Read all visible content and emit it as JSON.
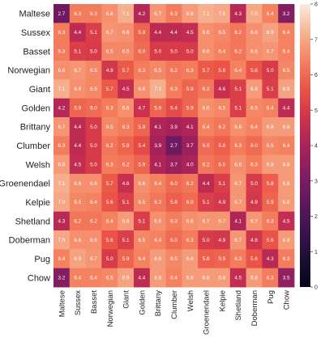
{
  "chart_data": {
    "type": "heatmap",
    "title": "",
    "xlabel": "",
    "ylabel": "",
    "rows": [
      "Maltese",
      "Sussex",
      "Basset",
      "Norwegian",
      "Giant",
      "Golden",
      "Brittany",
      "Clumber",
      "Welsh",
      "Groenendael",
      "Kelpie",
      "Shetland",
      "Doberman",
      "Pug",
      "Chow"
    ],
    "columns": [
      "Maltese",
      "Sussex",
      "Basset",
      "Norwegian",
      "Giant",
      "Golden",
      "Brittany",
      "Clumber",
      "Welsh",
      "Groenendael",
      "Kelpie",
      "Shetland",
      "Doberman",
      "Pug",
      "Chow"
    ],
    "values": [
      [
        2.7,
        6.3,
        6.3,
        6.6,
        7.1,
        4.2,
        6.7,
        6.3,
        6.8,
        7.1,
        7.0,
        4.3,
        7.0,
        6.4,
        3.2
      ],
      [
        6.3,
        4.4,
        5.1,
        6.7,
        6.6,
        5.9,
        4.4,
        4.4,
        4.5,
        6.6,
        6.5,
        6.2,
        6.6,
        6.9,
        6.4
      ],
      [
        6.3,
        5.1,
        5.0,
        6.5,
        6.5,
        6.0,
        5.0,
        5.0,
        5.0,
        6.6,
        6.4,
        6.2,
        6.6,
        6.7,
        6.4
      ],
      [
        6.6,
        6.7,
        6.5,
        4.9,
        5.7,
        6.3,
        6.5,
        6.2,
        6.3,
        5.7,
        5.6,
        6.4,
        5.6,
        5.0,
        6.5
      ],
      [
        7.1,
        6.6,
        6.5,
        5.7,
        4.5,
        6.6,
        7.1,
        6.3,
        5.9,
        6.2,
        4.6,
        5.1,
        6.8,
        5.1,
        6.9
      ],
      [
        4.2,
        5.9,
        6.0,
        6.3,
        6.6,
        4.7,
        5.9,
        5.4,
        5.9,
        6.6,
        6.5,
        5.1,
        6.5,
        6.4,
        4.4
      ],
      [
        6.7,
        4.4,
        5.0,
        6.5,
        6.3,
        5.9,
        4.1,
        3.9,
        4.1,
        6.4,
        6.2,
        6.6,
        6.4,
        6.8,
        6.8
      ],
      [
        6.3,
        4.4,
        5.0,
        6.2,
        5.9,
        5.4,
        3.9,
        2.7,
        3.7,
        6.0,
        5.8,
        6.3,
        6.0,
        6.5,
        6.4
      ],
      [
        6.8,
        4.5,
        5.0,
        6.3,
        6.2,
        5.9,
        4.1,
        3.7,
        4.0,
        6.2,
        6.0,
        6.6,
        6.3,
        6.8,
        6.8
      ],
      [
        7.1,
        6.6,
        6.6,
        5.7,
        4.6,
        6.6,
        6.4,
        6.0,
        6.2,
        4.4,
        5.1,
        6.7,
        5.0,
        5.8,
        6.8
      ],
      [
        7.0,
        6.5,
        6.4,
        5.6,
        5.1,
        6.5,
        6.2,
        5.8,
        6.0,
        5.1,
        4.9,
        6.7,
        4.9,
        5.9,
        6.8
      ],
      [
        4.3,
        6.2,
        6.2,
        6.4,
        6.8,
        5.1,
        6.6,
        6.3,
        6.6,
        6.7,
        6.7,
        4.1,
        6.7,
        6.3,
        4.5
      ],
      [
        7.0,
        6.6,
        6.6,
        5.6,
        5.1,
        6.5,
        6.4,
        6.0,
        6.3,
        5.0,
        4.9,
        6.7,
        4.8,
        5.6,
        6.8
      ],
      [
        6.4,
        6.9,
        6.7,
        5.0,
        5.9,
        6.4,
        6.8,
        6.5,
        6.8,
        5.8,
        5.9,
        6.3,
        5.6,
        4.3,
        6.3
      ],
      [
        3.2,
        6.4,
        6.4,
        6.5,
        6.9,
        4.4,
        6.8,
        6.4,
        6.8,
        6.8,
        6.8,
        4.5,
        6.8,
        6.3,
        3.5
      ]
    ],
    "colorbar": {
      "range": [
        0,
        8
      ],
      "ticks": [
        "0",
        "1",
        "2",
        "3",
        "4",
        "5",
        "6",
        "7",
        "8"
      ]
    },
    "colormap": "rocket",
    "grid": false,
    "legend": "colorbar-right"
  }
}
